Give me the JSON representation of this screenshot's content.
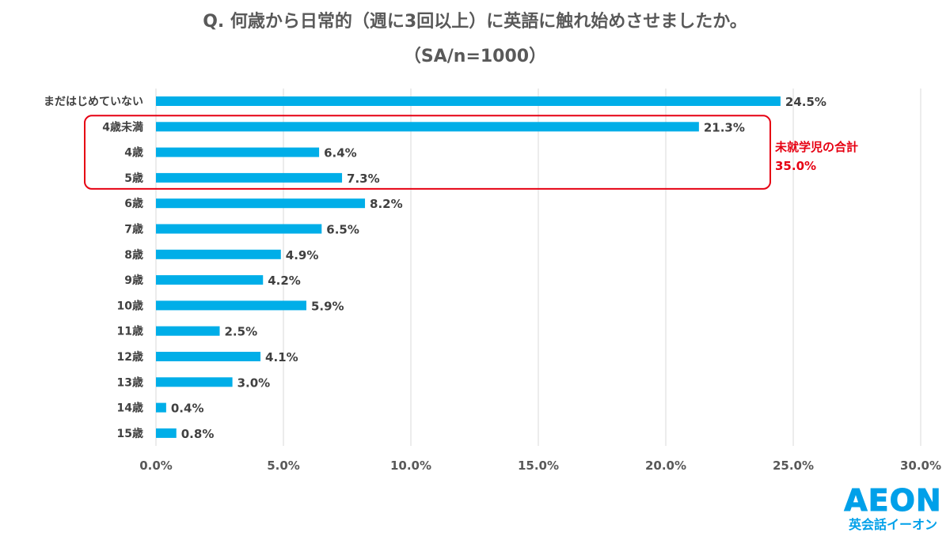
{
  "title": {
    "line1": "Q. 何歳から日常的（週に3回以上）に英語に触れ始めさせましたか。",
    "line2": "（SA/n=1000）"
  },
  "chart_data": {
    "type": "bar",
    "orientation": "horizontal",
    "categories": [
      "まだはじめていない",
      "4歳未満",
      "4歳",
      "5歳",
      "6歳",
      "7歳",
      "8歳",
      "9歳",
      "10歳",
      "11歳",
      "12歳",
      "13歳",
      "14歳",
      "15歳"
    ],
    "values": [
      24.5,
      21.3,
      6.4,
      7.3,
      8.2,
      6.5,
      4.9,
      4.2,
      5.9,
      2.5,
      4.1,
      3.0,
      0.4,
      0.8
    ],
    "value_labels": [
      "24.5%",
      "21.3%",
      "6.4%",
      "7.3%",
      "8.2%",
      "6.5%",
      "4.9%",
      "4.2%",
      "5.9%",
      "2.5%",
      "4.1%",
      "3.0%",
      "0.4%",
      "0.8%"
    ],
    "xlim": [
      0,
      30
    ],
    "xticks": [
      0,
      5,
      10,
      15,
      20,
      25,
      30
    ],
    "xtick_labels": [
      "0.0%",
      "5.0%",
      "10.0%",
      "15.0%",
      "20.0%",
      "25.0%",
      "30.0%"
    ],
    "grid": true,
    "bar_color": "#00aee8",
    "annotation": {
      "categories": [
        "4歳未満",
        "4歳",
        "5歳"
      ],
      "line1": "未就学児の合計",
      "line2": "35.0%",
      "color": "#e60012"
    }
  },
  "logo": {
    "brand": "AEON",
    "sub": "英会話イーオン",
    "color": "#00a0e9"
  }
}
